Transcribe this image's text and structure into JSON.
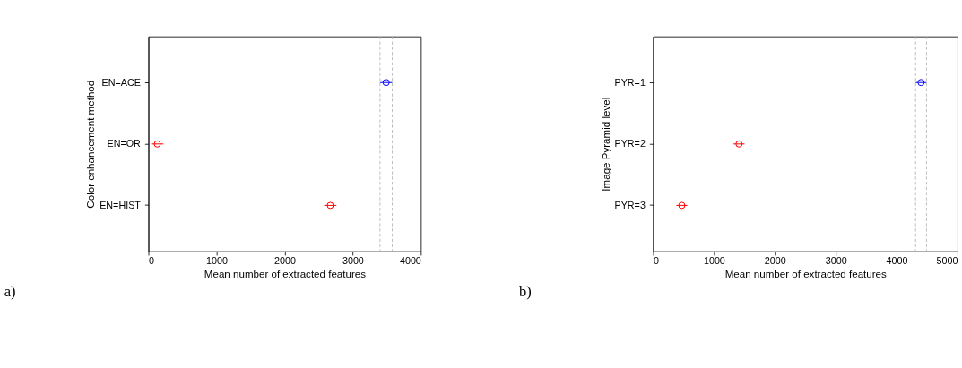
{
  "chart_data": [
    {
      "type": "scatter",
      "orientation": "horizontal",
      "categories": [
        "EN=ACE",
        "EN=OR",
        "EN=HIST"
      ],
      "values": [
        3490,
        130,
        2670
      ],
      "errors": [
        90,
        90,
        90
      ],
      "colors": [
        "#0000ff",
        "#ff0000",
        "#ff0000"
      ],
      "marker": "circle",
      "xlabel": "Mean number of extracted features",
      "ylabel": "Color enhancement method",
      "xlim": [
        0,
        4000
      ],
      "xticks": [
        0,
        1000,
        2000,
        3000,
        4000
      ],
      "grid": false,
      "ref_lines": [
        {
          "axis": "x",
          "value": 3400,
          "color": "#b0b0b0",
          "line_style": "dashed"
        },
        {
          "axis": "x",
          "value": 3580,
          "color": "#b0b0b0",
          "line_style": "dashed"
        }
      ],
      "annotations": [
        "a)"
      ]
    },
    {
      "type": "scatter",
      "orientation": "horizontal",
      "categories": [
        "PYR=1",
        "PYR=2",
        "PYR=3"
      ],
      "values": [
        4400,
        1410,
        470
      ],
      "errors": [
        90,
        90,
        90
      ],
      "colors": [
        "#0000ff",
        "#ff0000",
        "#ff0000"
      ],
      "marker": "circle",
      "xlabel": "Mean number of extracted features",
      "ylabel": "Image Pyramid level",
      "xlim": [
        0,
        5000
      ],
      "xticks": [
        0,
        1000,
        2000,
        3000,
        4000,
        5000
      ],
      "grid": false,
      "ref_lines": [
        {
          "axis": "x",
          "value": 4310,
          "color": "#b0b0b0",
          "line_style": "dashed"
        },
        {
          "axis": "x",
          "value": 4490,
          "color": "#b0b0b0",
          "line_style": "dashed"
        }
      ],
      "annotations": [
        "b)"
      ]
    }
  ]
}
